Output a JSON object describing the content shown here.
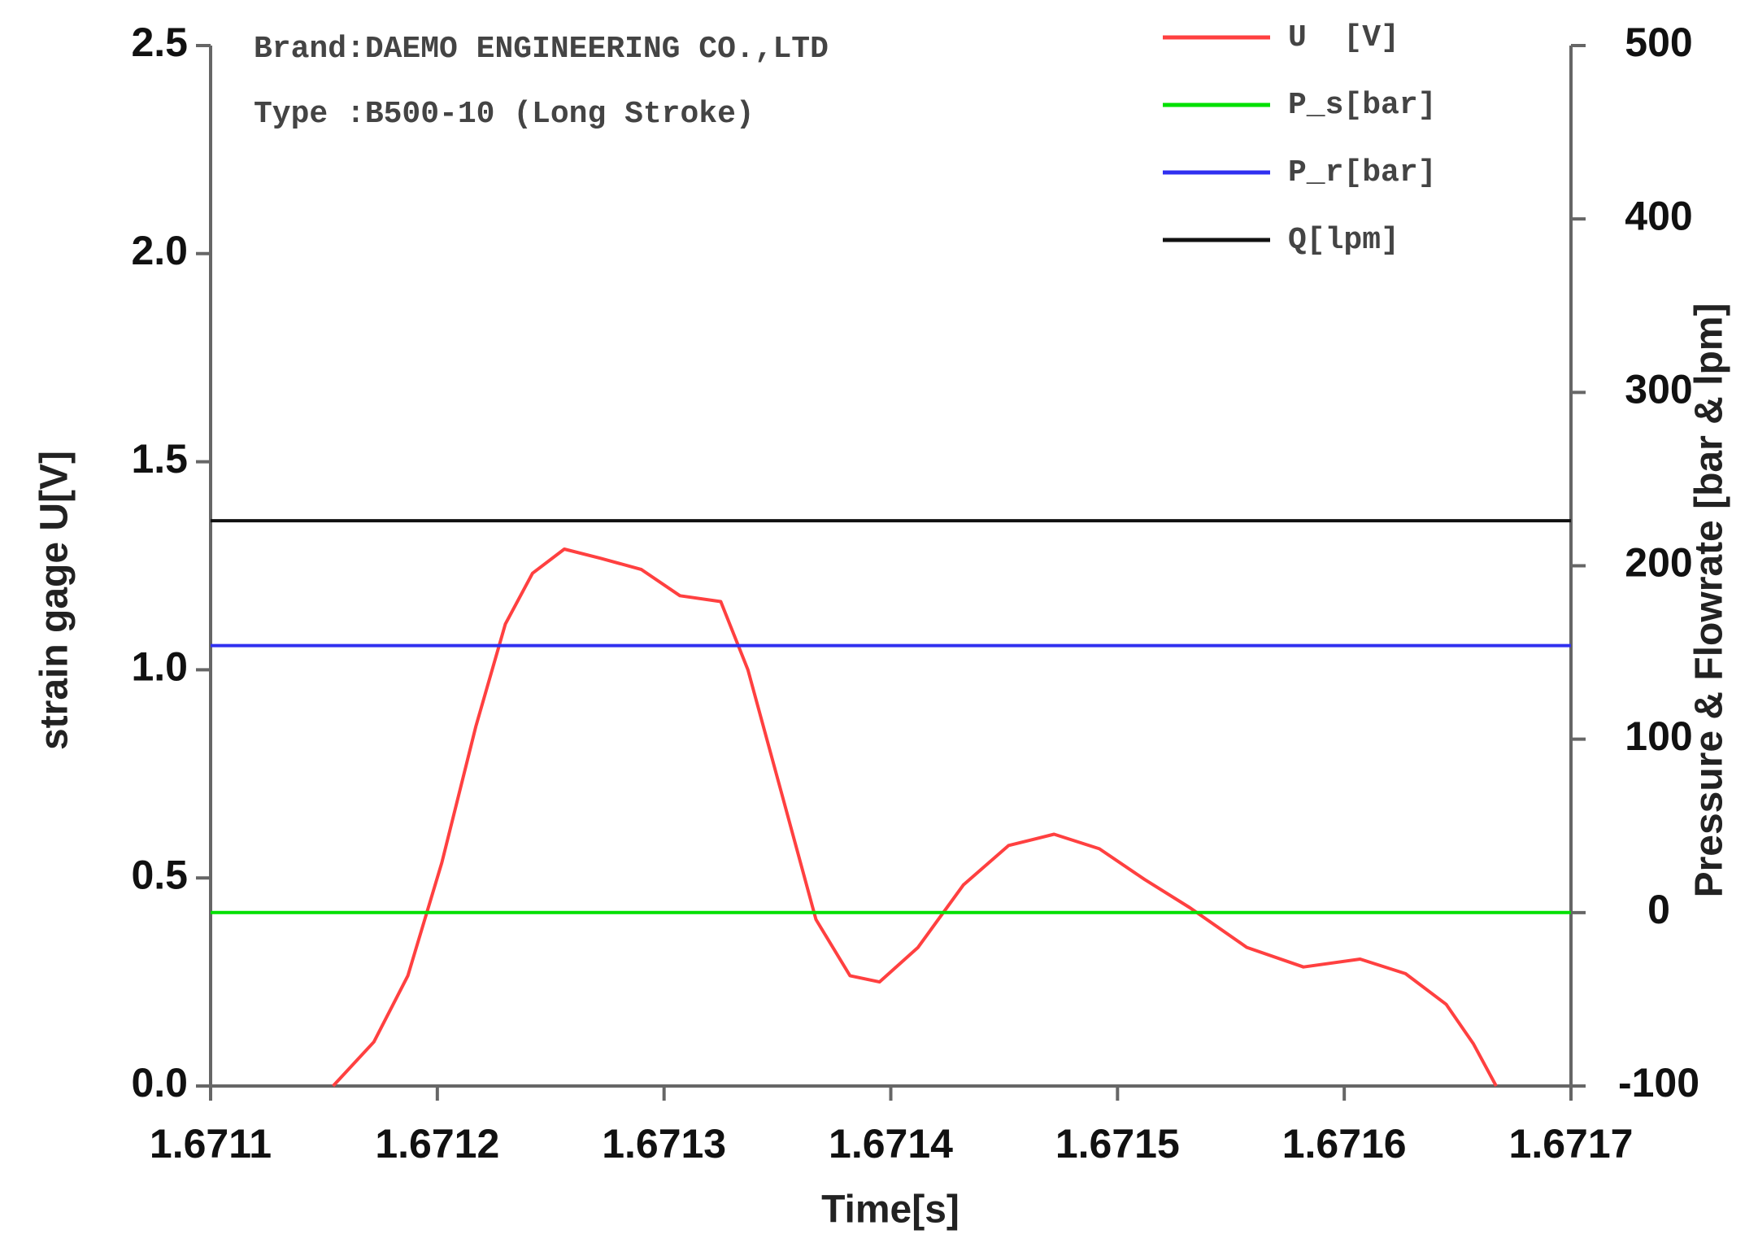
{
  "chart_data": {
    "type": "line",
    "annotations": [
      "Brand:DAEMO ENGINEERING CO.,LTD",
      "Type :B500-10 (Long Stroke)"
    ],
    "xlabel": "Time[s]",
    "ylabel": "strain gage U[V]",
    "y2label": "Pressure & Flowrate [bar & lpm]",
    "xlim": [
      1.6711,
      1.6717
    ],
    "xticks": [
      1.6711,
      1.6712,
      1.6713,
      1.6714,
      1.6715,
      1.6716,
      1.6717
    ],
    "ylim": [
      0,
      2.5
    ],
    "yticks": [
      {
        "value": 0,
        "label": "0.0"
      },
      0.5,
      {
        "value": 1,
        "label": "1.0"
      },
      1.5,
      {
        "value": 2,
        "label": "2.0"
      },
      2.5
    ],
    "y2lim": [
      -100,
      500
    ],
    "y2ticks": [
      -100,
      0,
      100,
      200,
      300,
      400,
      500
    ],
    "legend": "upper right",
    "series": [
      {
        "name": "U  [V]",
        "color": "#ff4040",
        "x": [
          1.671154,
          1.671172,
          1.671187,
          1.671202,
          1.671217,
          1.67123,
          1.671242,
          1.671256,
          1.671272,
          1.67129,
          1.671307,
          1.671325,
          1.671337,
          1.671352,
          1.671367,
          1.671382,
          1.671395,
          1.671412,
          1.671432,
          1.671452,
          1.671472,
          1.671492,
          1.671512,
          1.671532,
          1.671557,
          1.671582,
          1.671607,
          1.671627,
          1.671645,
          1.671657,
          1.671667
        ],
        "values": [
          0,
          0.106,
          0.265,
          0.537,
          0.864,
          1.11,
          1.232,
          1.29,
          1.268,
          1.241,
          1.178,
          1.164,
          1.0,
          0.7,
          0.4,
          0.265,
          0.25,
          0.333,
          0.483,
          0.578,
          0.605,
          0.57,
          0.496,
          0.428,
          0.333,
          0.286,
          0.305,
          0.27,
          0.196,
          0.101,
          0
        ]
      },
      {
        "name": "P_s[bar]",
        "color": "#00e000",
        "axis": "y2",
        "x": [
          1.6711,
          1.6717
        ],
        "values": [
          0,
          0
        ]
      },
      {
        "name": "P_r[bar]",
        "color": "#3030f0",
        "axis": "y2",
        "x": [
          1.6711,
          1.6717
        ],
        "values": [
          154,
          154
        ]
      },
      {
        "name": "Q[lpm]",
        "color": "#111111",
        "axis": "y2",
        "x": [
          1.6711,
          1.6717
        ],
        "values": [
          226,
          226
        ]
      }
    ]
  }
}
